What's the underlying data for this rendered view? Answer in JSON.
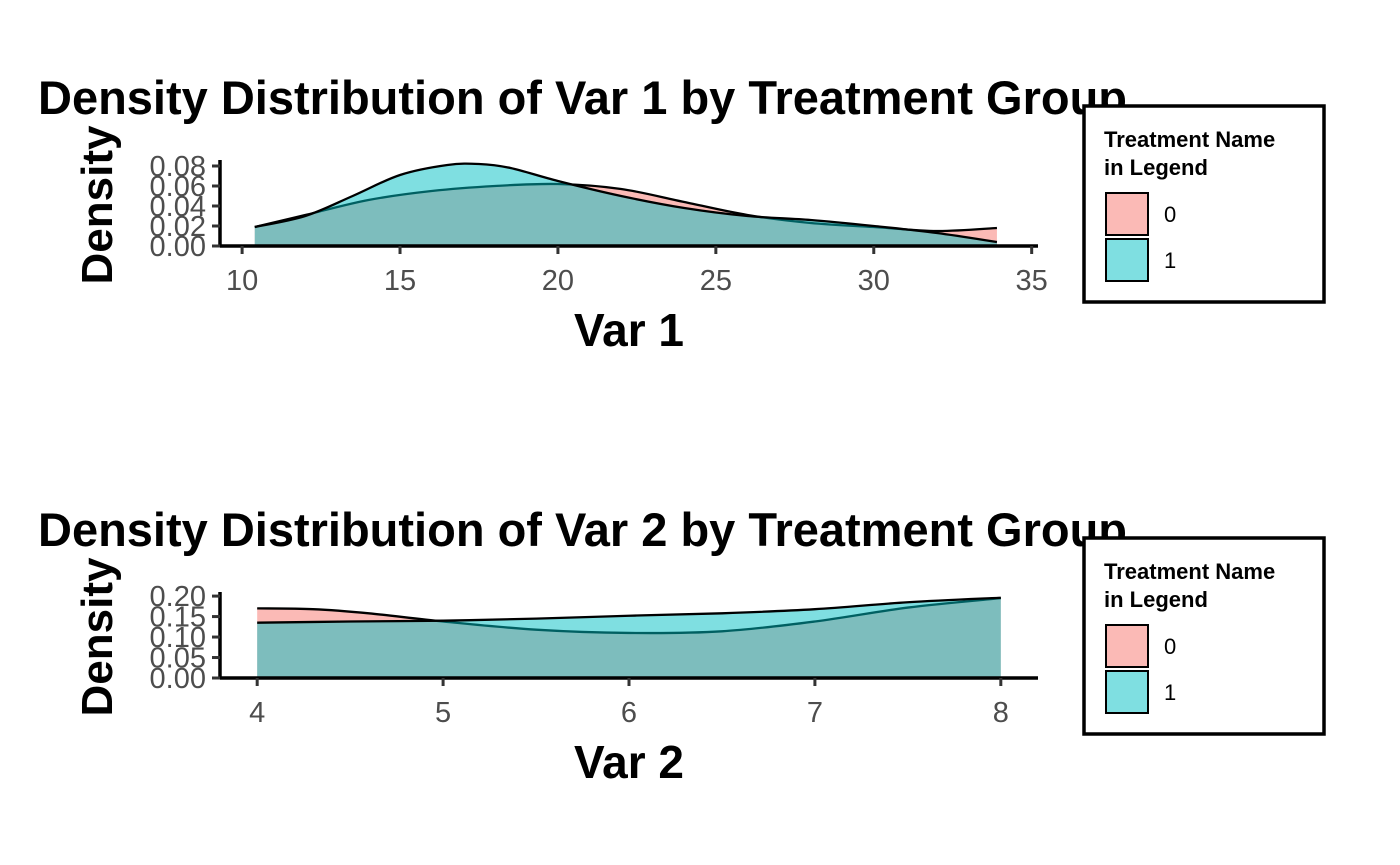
{
  "chart_data": [
    {
      "type": "area",
      "title": "Density Distribution of Var 1 by Treatment Group",
      "xlabel": "Var 1",
      "ylabel": "Density",
      "xlim": [
        9.3,
        35.2
      ],
      "ylim": [
        0,
        0.086
      ],
      "x_ticks": [
        "10",
        "15",
        "20",
        "25",
        "30",
        "35"
      ],
      "x_tick_values": [
        10,
        15,
        20,
        25,
        30,
        35
      ],
      "y_ticks": [
        "0.00",
        "0.02",
        "0.04",
        "0.06",
        "0.08"
      ],
      "y_tick_values": [
        0,
        0.02,
        0.04,
        0.06,
        0.08
      ],
      "grid": false,
      "legend": {
        "title_lines": [
          "Treatment Name",
          "in Legend"
        ],
        "position": "right",
        "entries": [
          "0",
          "1"
        ]
      },
      "colors": {
        "0": "#F8766D",
        "1": "#00BFC4"
      },
      "series": [
        {
          "name": "0",
          "x": [
            10.4,
            12,
            14,
            16,
            18,
            20,
            22,
            24,
            26,
            28,
            30,
            32,
            33.9
          ],
          "values": [
            0.019,
            0.031,
            0.046,
            0.055,
            0.06,
            0.062,
            0.057,
            0.044,
            0.031,
            0.023,
            0.019,
            0.015,
            0.018
          ]
        },
        {
          "name": "1",
          "x": [
            10.4,
            12,
            13.5,
            15,
            16.5,
            17.5,
            18.5,
            20,
            22,
            24,
            26,
            28,
            30,
            32,
            33.9
          ],
          "values": [
            0.019,
            0.03,
            0.05,
            0.071,
            0.081,
            0.082,
            0.078,
            0.065,
            0.05,
            0.038,
            0.03,
            0.026,
            0.02,
            0.013,
            0.004
          ]
        }
      ]
    },
    {
      "type": "area",
      "title": "Density Distribution of Var 2 by Treatment Group",
      "xlabel": "Var 2",
      "ylabel": "Density",
      "xlim": [
        3.8,
        8.2
      ],
      "ylim": [
        0,
        0.21
      ],
      "x_ticks": [
        "4",
        "5",
        "6",
        "7",
        "8"
      ],
      "x_tick_values": [
        4,
        5,
        6,
        7,
        8
      ],
      "y_ticks": [
        "0.00",
        "0.05",
        "0.10",
        "0.15",
        "0.20"
      ],
      "y_tick_values": [
        0,
        0.05,
        0.1,
        0.15,
        0.2
      ],
      "grid": false,
      "legend": {
        "title_lines": [
          "Treatment Name",
          "in Legend"
        ],
        "position": "right",
        "entries": [
          "0",
          "1"
        ]
      },
      "colors": {
        "0": "#F8766D",
        "1": "#00BFC4"
      },
      "series": [
        {
          "name": "0",
          "x": [
            4,
            4.3,
            4.6,
            5,
            5.5,
            6,
            6.5,
            7,
            7.5,
            8
          ],
          "values": [
            0.17,
            0.168,
            0.158,
            0.138,
            0.118,
            0.11,
            0.114,
            0.138,
            0.172,
            0.195
          ]
        },
        {
          "name": "1",
          "x": [
            4,
            4.5,
            5,
            5.5,
            6,
            6.5,
            7,
            7.5,
            8
          ],
          "values": [
            0.135,
            0.138,
            0.14,
            0.145,
            0.152,
            0.158,
            0.168,
            0.185,
            0.196
          ]
        }
      ]
    }
  ]
}
